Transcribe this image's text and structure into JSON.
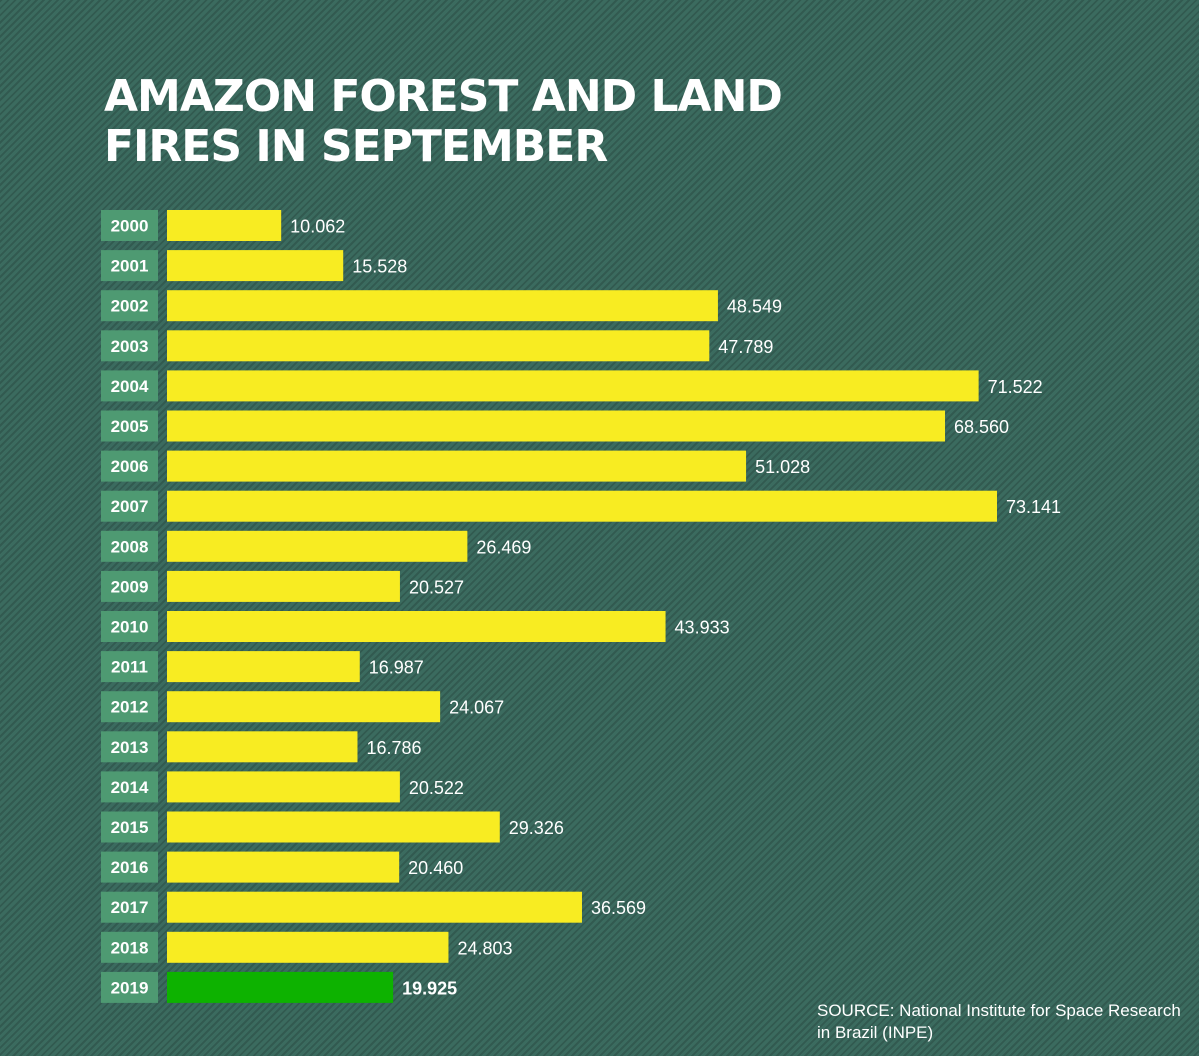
{
  "title": "AMAZON FOREST AND LAND FIRES IN SEPTEMBER",
  "source": "SOURCE: National Institute for Space Research in Brazil (INPE)",
  "colors": {
    "background": "#3b6b5f",
    "bar": "#f8ec22",
    "highlight_bar": "#0db200",
    "year_label_bg": "#4e9a72",
    "text": "#ffffff"
  },
  "chart_data": {
    "type": "bar",
    "orientation": "horizontal",
    "title": "AMAZON FOREST AND LAND FIRES IN SEPTEMBER",
    "categories": [
      "2000",
      "2001",
      "2002",
      "2003",
      "2004",
      "2005",
      "2006",
      "2007",
      "2008",
      "2009",
      "2010",
      "2011",
      "2012",
      "2013",
      "2014",
      "2015",
      "2016",
      "2017",
      "2018",
      "2019"
    ],
    "values": [
      10062,
      15528,
      48549,
      47789,
      71522,
      68560,
      51028,
      73141,
      26469,
      20527,
      43933,
      16987,
      24067,
      16786,
      20522,
      29326,
      20460,
      36569,
      24803,
      19925
    ],
    "value_labels": [
      "10.062",
      "15.528",
      "48.549",
      "47.789",
      "71.522",
      "68.560",
      "51.028",
      "73.141",
      "26.469",
      "20.527",
      "43.933",
      "16.987",
      "24.067",
      "16.786",
      "20.522",
      "29.326",
      "20.460",
      "36.569",
      "24.803",
      "19.925"
    ],
    "highlight_category": "2019",
    "xlim": [
      0,
      75000
    ],
    "grid": false,
    "legend": "none"
  }
}
